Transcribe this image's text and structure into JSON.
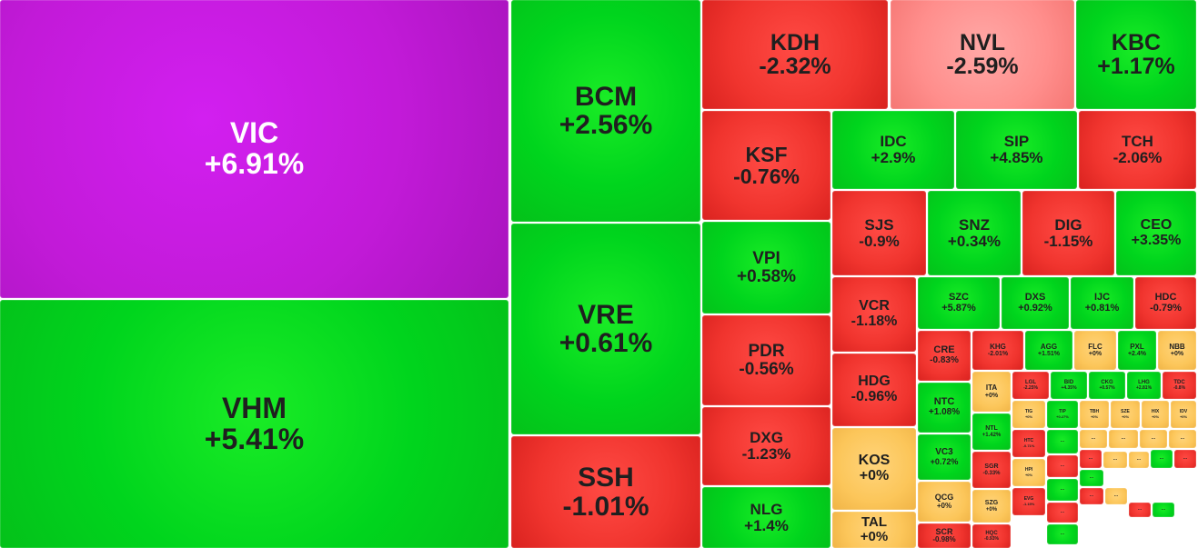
{
  "colors": {
    "up": "#00d51d",
    "down": "#f0342e",
    "flat": "#fcc65a",
    "ceiling": "#c21ad8",
    "mild_down": "#ff8e8c"
  },
  "tiles": [
    {
      "symbol": "VIC",
      "change": "+6.91%",
      "color": "purple"
    },
    {
      "symbol": "VHM",
      "change": "+5.41%",
      "color": "up"
    },
    {
      "symbol": "BCM",
      "change": "+2.56%",
      "color": "up"
    },
    {
      "symbol": "VRE",
      "change": "+0.61%",
      "color": "up"
    },
    {
      "symbol": "SSH",
      "change": "-1.01%",
      "color": "down"
    },
    {
      "symbol": "KDH",
      "change": "-2.32%",
      "color": "down"
    },
    {
      "symbol": "NVL",
      "change": "-2.59%",
      "color": "pink"
    },
    {
      "symbol": "KBC",
      "change": "+1.17%",
      "color": "up"
    },
    {
      "symbol": "KSF",
      "change": "-0.76%",
      "color": "down"
    },
    {
      "symbol": "IDC",
      "change": "+2.9%",
      "color": "up"
    },
    {
      "symbol": "SIP",
      "change": "+4.85%",
      "color": "up"
    },
    {
      "symbol": "TCH",
      "change": "-2.06%",
      "color": "down"
    },
    {
      "symbol": "VPI",
      "change": "+0.58%",
      "color": "up"
    },
    {
      "symbol": "SJS",
      "change": "-0.9%",
      "color": "down"
    },
    {
      "symbol": "SNZ",
      "change": "+0.34%",
      "color": "up"
    },
    {
      "symbol": "DIG",
      "change": "-1.15%",
      "color": "down"
    },
    {
      "symbol": "CEO",
      "change": "+3.35%",
      "color": "up"
    },
    {
      "symbol": "PDR",
      "change": "-0.56%",
      "color": "down"
    },
    {
      "symbol": "VCR",
      "change": "-1.18%",
      "color": "down"
    },
    {
      "symbol": "SZC",
      "change": "+5.87%",
      "color": "up"
    },
    {
      "symbol": "DXS",
      "change": "+0.92%",
      "color": "up"
    },
    {
      "symbol": "IJC",
      "change": "+0.81%",
      "color": "up"
    },
    {
      "symbol": "HDC",
      "change": "-0.79%",
      "color": "down"
    },
    {
      "symbol": "DXG",
      "change": "-1.23%",
      "color": "down"
    },
    {
      "symbol": "HDG",
      "change": "-0.96%",
      "color": "down"
    },
    {
      "symbol": "CRE",
      "change": "-0.83%",
      "color": "down"
    },
    {
      "symbol": "KHG",
      "change": "-2.01%",
      "color": "down"
    },
    {
      "symbol": "AGG",
      "change": "+1.51%",
      "color": "up"
    },
    {
      "symbol": "FLC",
      "change": "+0%",
      "color": "flat"
    },
    {
      "symbol": "PXL",
      "change": "+2.4%",
      "color": "up"
    },
    {
      "symbol": "NBB",
      "change": "+0%",
      "color": "flat"
    },
    {
      "symbol": "NLG",
      "change": "+1.4%",
      "color": "up"
    },
    {
      "symbol": "KOS",
      "change": "+0%",
      "color": "flat"
    },
    {
      "symbol": "NTC",
      "change": "+1.08%",
      "color": "up"
    },
    {
      "symbol": "ITA",
      "change": "+0%",
      "color": "flat"
    },
    {
      "symbol": "LGL",
      "change": "-2.25%",
      "color": "down"
    },
    {
      "symbol": "BID",
      "change": "+4.35%",
      "color": "up"
    },
    {
      "symbol": "CKG",
      "change": "+0.57%",
      "color": "up"
    },
    {
      "symbol": "LHG",
      "change": "+2.81%",
      "color": "up"
    },
    {
      "symbol": "TDC",
      "change": "-0.8%",
      "color": "down"
    },
    {
      "symbol": "NTL",
      "change": "+1.42%",
      "color": "up"
    },
    {
      "symbol": "TIG",
      "change": "+0%",
      "color": "flat"
    },
    {
      "symbol": "TIP",
      "change": "+0.27%",
      "color": "up"
    },
    {
      "symbol": "TBH",
      "change": "+0%",
      "color": "flat"
    },
    {
      "symbol": "SZE",
      "change": "+0%",
      "color": "flat"
    },
    {
      "symbol": "HIX",
      "change": "+0%",
      "color": "flat"
    },
    {
      "symbol": "IDV",
      "change": "+0%",
      "color": "flat"
    },
    {
      "symbol": "TAL",
      "change": "+0%",
      "color": "flat"
    },
    {
      "symbol": "VC3",
      "change": "+0.72%",
      "color": "up"
    },
    {
      "symbol": "HTC",
      "change": "-0.71%",
      "color": "down"
    },
    {
      "symbol": "SGR",
      "change": "-0.33%",
      "color": "down"
    },
    {
      "symbol": "HPI",
      "change": "+0%",
      "color": "flat"
    },
    {
      "symbol": "QCG",
      "change": "+0%",
      "color": "flat"
    },
    {
      "symbol": "EVG",
      "change": "-1.15%",
      "color": "down"
    },
    {
      "symbol": "SZG",
      "change": "+0%",
      "color": "flat"
    },
    {
      "symbol": "SCR",
      "change": "-0.98%",
      "color": "down"
    },
    {
      "symbol": "HQC",
      "change": "-0.93%",
      "color": "down"
    },
    {
      "symbol": "...",
      "change": "",
      "color": "up"
    },
    {
      "symbol": "...",
      "change": "",
      "color": "flat"
    },
    {
      "symbol": "...",
      "change": "",
      "color": "flat"
    },
    {
      "symbol": "...",
      "change": "",
      "color": "flat"
    },
    {
      "symbol": "...",
      "change": "",
      "color": "flat"
    },
    {
      "symbol": "...",
      "change": "",
      "color": "down"
    },
    {
      "symbol": "...",
      "change": "",
      "color": "up"
    },
    {
      "symbol": "...",
      "change": "",
      "color": "down"
    },
    {
      "symbol": "...",
      "change": "",
      "color": "down"
    },
    {
      "symbol": "...",
      "change": "",
      "color": "flat"
    },
    {
      "symbol": "...",
      "change": "",
      "color": "flat"
    },
    {
      "symbol": "...",
      "change": "",
      "color": "up"
    },
    {
      "symbol": "...",
      "change": "",
      "color": "up"
    },
    {
      "symbol": "...",
      "change": "",
      "color": "down"
    },
    {
      "symbol": "...",
      "change": "",
      "color": "flat"
    },
    {
      "symbol": "...",
      "change": "",
      "color": "down"
    },
    {
      "symbol": "...",
      "change": "",
      "color": "up"
    },
    {
      "symbol": "...",
      "change": "",
      "color": "down"
    },
    {
      "symbol": "...",
      "change": "",
      "color": "up"
    }
  ]
}
